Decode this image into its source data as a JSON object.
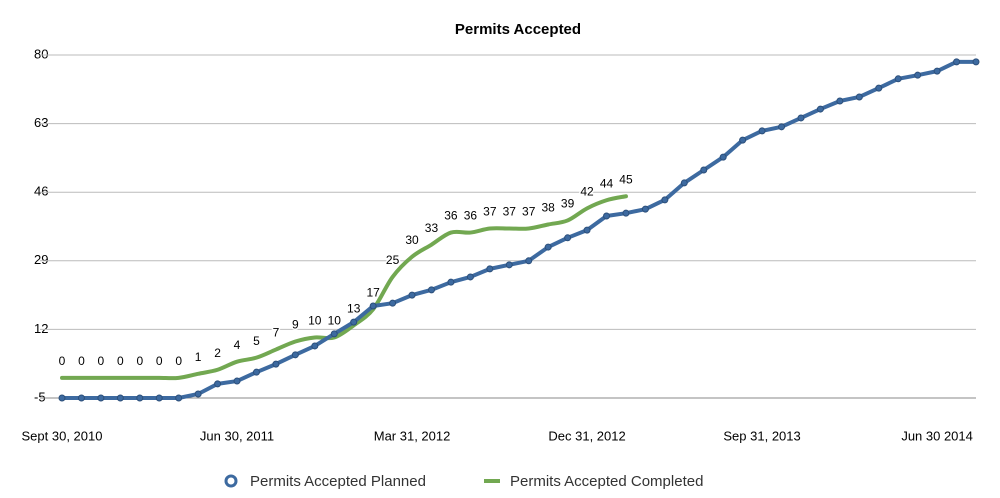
{
  "chart_data": {
    "type": "line",
    "title": "Permits Accepted",
    "categories": [
      "Sept 30, 2010",
      null,
      null,
      null,
      null,
      null,
      null,
      null,
      null,
      "Jun 30, 2011",
      null,
      null,
      null,
      null,
      null,
      null,
      null,
      null,
      "Mar 31, 2012",
      null,
      null,
      null,
      null,
      null,
      null,
      null,
      null,
      "Dec 31, 2012",
      null,
      null,
      null,
      null,
      null,
      null,
      null,
      null,
      "Sep 31, 2013",
      null,
      null,
      null,
      null,
      null,
      null,
      null,
      null,
      "Jun 30 2014",
      null,
      null
    ],
    "series": [
      {
        "name": "Permits Accepted Planned",
        "color": "#3d6aa0",
        "values": [
          -5,
          -5,
          -5,
          -5,
          -5,
          -5,
          -5,
          -4,
          -1.5,
          -0.8,
          1.4,
          3.4,
          5.7,
          7.9,
          10.9,
          13.8,
          17.8,
          18.5,
          20.5,
          21.8,
          23.7,
          25,
          27,
          28,
          29,
          32.4,
          34.7,
          36.6,
          40.1,
          40.8,
          41.8,
          44.1,
          48.3,
          51.5,
          54.7,
          58.9,
          61.2,
          62.2,
          64.4,
          66.6,
          68.6,
          69.6,
          71.8,
          74.1,
          75,
          76,
          78.3,
          78.3
        ]
      },
      {
        "name": "Permits Accepted Completed",
        "color": "#72a851",
        "values": [
          0,
          0,
          0,
          0,
          0,
          0,
          0,
          1,
          2,
          4,
          5,
          7,
          9,
          10,
          10,
          13,
          17,
          25,
          30,
          33,
          36,
          36,
          37,
          37,
          37,
          38,
          39,
          42,
          44,
          45,
          null,
          null,
          null,
          null,
          null,
          null,
          null,
          null,
          null,
          null,
          null,
          null,
          null,
          null,
          null,
          null,
          null,
          null
        ]
      }
    ],
    "ylim": [
      -5,
      80
    ],
    "yticks": [
      -5,
      12,
      29,
      46,
      63,
      80
    ],
    "grid": true,
    "legend": "bottom"
  }
}
